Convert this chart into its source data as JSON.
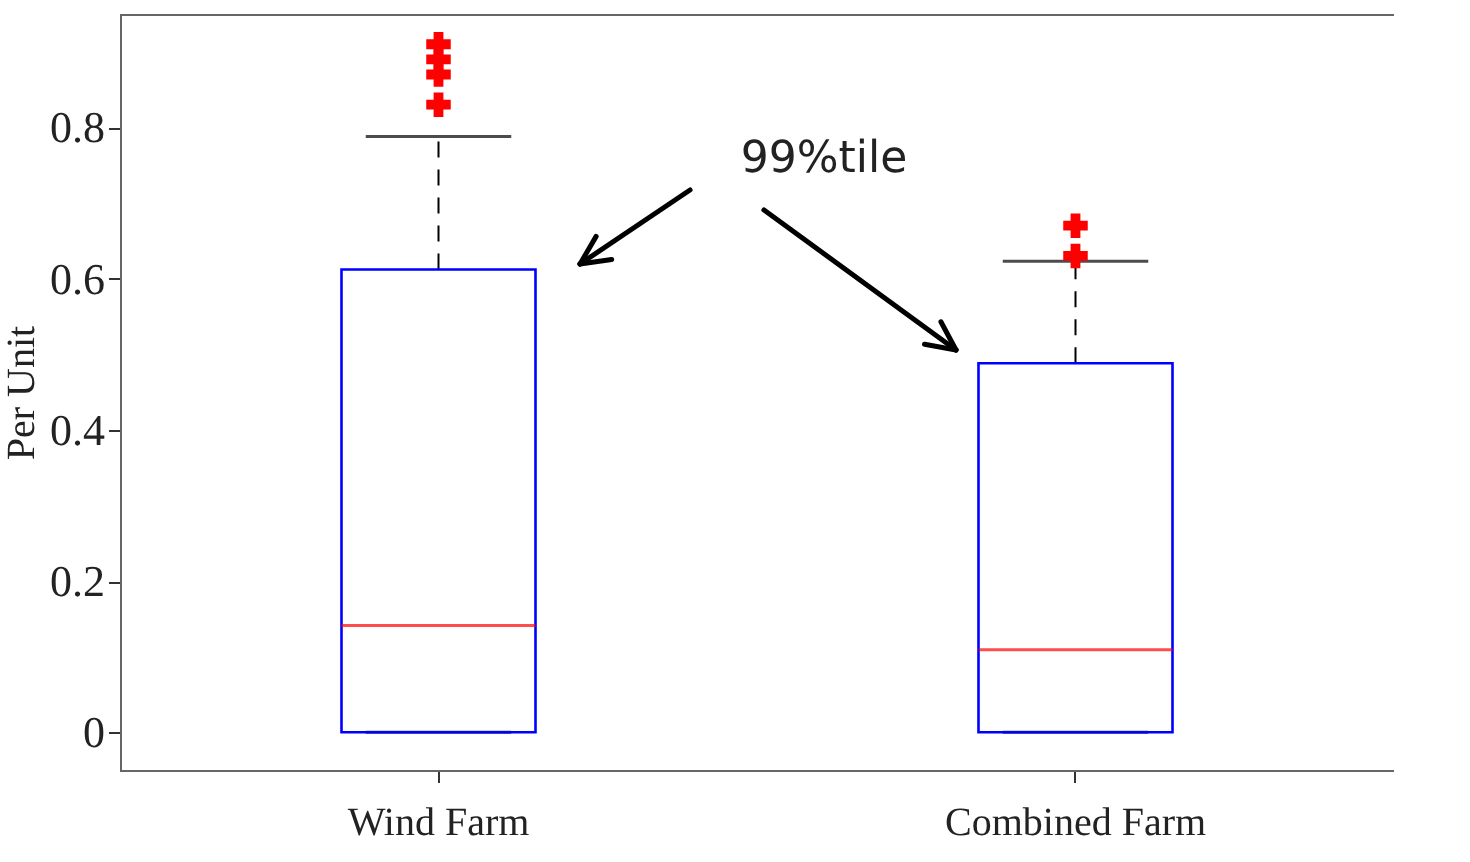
{
  "chart_data": {
    "type": "box",
    "ylabel": "Per Unit",
    "categories": [
      "Wind Farm",
      "Combined Farm"
    ],
    "boxes": [
      {
        "low": 0,
        "q1": 0,
        "median": 0.141,
        "q3": 0.612,
        "high": 0.788,
        "outliers": [
          0.83,
          0.87,
          0.89,
          0.91
        ]
      },
      {
        "low": 0,
        "q1": 0,
        "median": 0.109,
        "q3": 0.488,
        "high": 0.623,
        "outliers": [
          0.63,
          0.67
        ]
      }
    ],
    "ylim": [
      -0.05,
      0.95
    ],
    "yticks": [
      0,
      0.2,
      0.4,
      0.6,
      0.8
    ],
    "grid": false,
    "annotations": [
      "99%tile"
    ]
  }
}
